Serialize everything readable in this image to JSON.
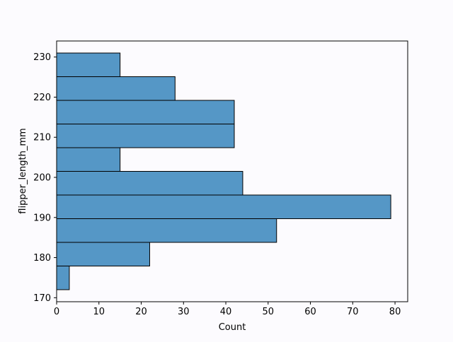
{
  "chart_data": {
    "type": "bar",
    "orientation": "horizontal",
    "title": "",
    "xlabel": "Count",
    "ylabel": "flipper_length_mm",
    "xlim": [
      0,
      83
    ],
    "ylim": [
      169,
      234
    ],
    "xticks": [
      0,
      10,
      20,
      30,
      40,
      50,
      60,
      70,
      80
    ],
    "yticks": [
      170,
      180,
      190,
      200,
      210,
      220,
      230
    ],
    "bins": [
      {
        "start": 172.0,
        "end": 177.9,
        "count": 3
      },
      {
        "start": 177.9,
        "end": 183.8,
        "count": 22
      },
      {
        "start": 183.8,
        "end": 189.7,
        "count": 52
      },
      {
        "start": 189.7,
        "end": 195.6,
        "count": 79
      },
      {
        "start": 195.6,
        "end": 201.5,
        "count": 44
      },
      {
        "start": 201.5,
        "end": 207.4,
        "count": 15
      },
      {
        "start": 207.4,
        "end": 213.3,
        "count": 42
      },
      {
        "start": 213.3,
        "end": 219.2,
        "count": 42
      },
      {
        "start": 219.2,
        "end": 225.1,
        "count": 28
      },
      {
        "start": 225.1,
        "end": 231.0,
        "count": 15
      }
    ],
    "bar_color": "#5597c6",
    "edge_color": "#000000",
    "grid": false,
    "background": "#fcfbfe"
  }
}
